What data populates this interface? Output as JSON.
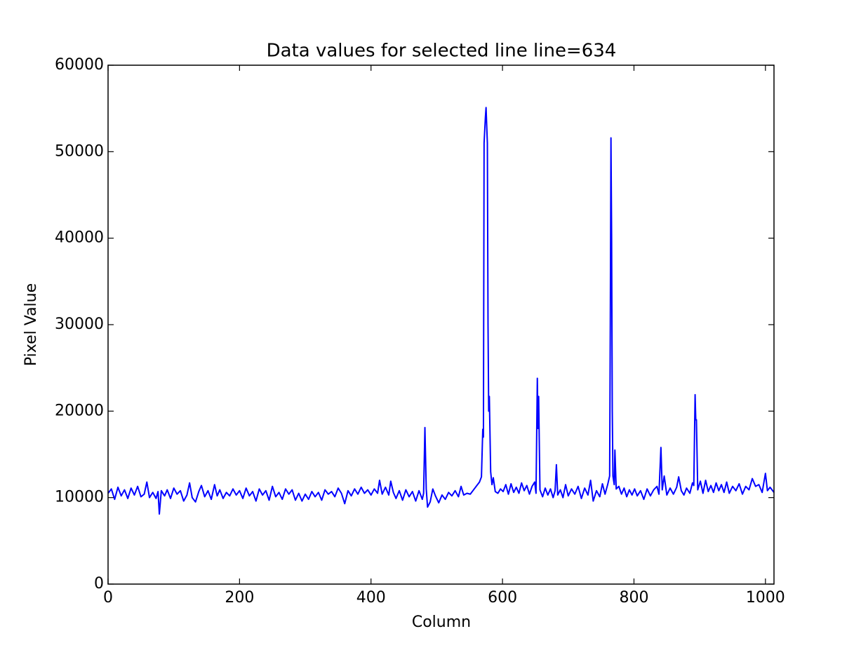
{
  "chart_data": {
    "type": "line",
    "title": "Data values for selected line  line=634",
    "x_label": "Column",
    "y_label": "Pixel Value",
    "xlim": [
      0,
      1013
    ],
    "ylim": [
      0,
      60000
    ],
    "xticks": [
      0,
      200,
      400,
      600,
      800,
      1000
    ],
    "yticks": [
      0,
      10000,
      20000,
      30000,
      40000,
      50000,
      60000
    ],
    "series": [
      {
        "color": "#0000ff",
        "x": [
          0,
          5,
          10,
          15,
          20,
          25,
          30,
          35,
          40,
          45,
          50,
          55,
          59,
          63,
          68,
          73,
          76,
          78,
          81,
          86,
          90,
          95,
          100,
          105,
          110,
          115,
          120,
          124,
          128,
          133,
          138,
          142,
          147,
          152,
          157,
          162,
          166,
          170,
          175,
          180,
          185,
          190,
          195,
          200,
          205,
          210,
          215,
          220,
          225,
          230,
          235,
          240,
          245,
          250,
          255,
          260,
          265,
          270,
          275,
          280,
          285,
          290,
          295,
          300,
          305,
          310,
          315,
          320,
          325,
          330,
          335,
          340,
          345,
          350,
          355,
          360,
          365,
          370,
          375,
          380,
          385,
          390,
          395,
          400,
          405,
          410,
          413,
          417,
          422,
          427,
          430,
          434,
          438,
          443,
          448,
          453,
          458,
          463,
          468,
          473,
          478,
          480,
          482,
          484,
          486,
          490,
          494,
          498,
          503,
          508,
          513,
          518,
          523,
          528,
          533,
          537,
          541,
          546,
          551,
          556,
          561,
          565,
          568,
          570,
          571,
          572,
          574,
          575,
          576,
          577,
          578,
          579,
          580,
          582,
          584,
          586,
          589,
          593,
          597,
          601,
          605,
          609,
          613,
          617,
          621,
          625,
          629,
          633,
          637,
          641,
          645,
          649,
          651,
          653,
          654,
          655,
          657,
          661,
          665,
          669,
          673,
          677,
          680,
          682,
          684,
          688,
          692,
          696,
          700,
          705,
          710,
          715,
          720,
          725,
          730,
          734,
          738,
          743,
          748,
          752,
          756,
          760,
          763,
          764,
          765,
          766,
          767,
          768,
          770,
          771,
          773,
          777,
          781,
          785,
          789,
          793,
          797,
          801,
          805,
          810,
          815,
          820,
          825,
          830,
          835,
          838,
          841,
          843,
          846,
          850,
          855,
          860,
          865,
          868,
          872,
          876,
          880,
          885,
          889,
          891,
          893,
          894,
          895,
          897,
          901,
          905,
          909,
          913,
          917,
          921,
          925,
          929,
          933,
          937,
          941,
          945,
          950,
          955,
          960,
          965,
          970,
          975,
          980,
          985,
          990,
          995,
          1000,
          1003,
          1007,
          1013
        ],
        "values": [
          10500,
          11000,
          9800,
          11200,
          10200,
          10900,
          9900,
          11100,
          10300,
          11300,
          10100,
          10400,
          11800,
          10000,
          10600,
          9900,
          10700,
          8100,
          10800,
          10200,
          10900,
          9900,
          11100,
          10400,
          10800,
          9600,
          10300,
          11700,
          10000,
          9500,
          10700,
          11400,
          10100,
          10800,
          9800,
          11500,
          10200,
          10900,
          9900,
          10600,
          10200,
          11000,
          10300,
          10800,
          9900,
          11100,
          10200,
          10700,
          9600,
          11000,
          10300,
          10800,
          9700,
          11300,
          10100,
          10600,
          9800,
          11000,
          10400,
          10900,
          9700,
          10500,
          9600,
          10400,
          9800,
          10700,
          10100,
          10600,
          9700,
          10900,
          10400,
          10700,
          10100,
          11100,
          10500,
          9300,
          10800,
          10200,
          11000,
          10400,
          11200,
          10500,
          10900,
          10300,
          11000,
          10500,
          12000,
          10400,
          11200,
          10300,
          11900,
          10600,
          9900,
          10800,
          9700,
          10900,
          10100,
          10700,
          9600,
          10800,
          9800,
          10500,
          18100,
          11000,
          8900,
          9500,
          11000,
          10200,
          9400,
          10300,
          9800,
          10600,
          10200,
          10800,
          10100,
          11300,
          10300,
          10500,
          10400,
          10900,
          11400,
          11800,
          12400,
          17900,
          17000,
          51000,
          54000,
          55100,
          53000,
          51000,
          30000,
          20000,
          21700,
          13000,
          11500,
          12300,
          10700,
          10500,
          11000,
          10700,
          11500,
          10400,
          11600,
          10600,
          11200,
          10500,
          11700,
          10800,
          11400,
          10400,
          11300,
          11800,
          10500,
          23800,
          18000,
          21700,
          10900,
          10100,
          11100,
          10300,
          11000,
          10000,
          10800,
          13800,
          10300,
          10900,
          10000,
          11500,
          10200,
          11000,
          10400,
          11300,
          9900,
          11100,
          10300,
          12000,
          9600,
          10800,
          10100,
          11600,
          10400,
          11500,
          12500,
          30000,
          51600,
          40000,
          20000,
          12500,
          11500,
          15500,
          11000,
          11300,
          10400,
          11100,
          10100,
          10900,
          10300,
          11000,
          10200,
          10800,
          9800,
          11000,
          10200,
          10900,
          11300,
          10400,
          15800,
          10900,
          12500,
          10300,
          11100,
          10400,
          11200,
          12400,
          10800,
          10300,
          11100,
          10500,
          11700,
          11400,
          21900,
          19000,
          19000,
          10900,
          11900,
          10500,
          12000,
          10700,
          11400,
          10600,
          11700,
          10800,
          11500,
          10600,
          11800,
          10500,
          11300,
          10800,
          11600,
          10400,
          11300,
          10900,
          12200,
          11300,
          11500,
          10600,
          12800,
          10800,
          11200,
          10600
        ]
      }
    ]
  }
}
